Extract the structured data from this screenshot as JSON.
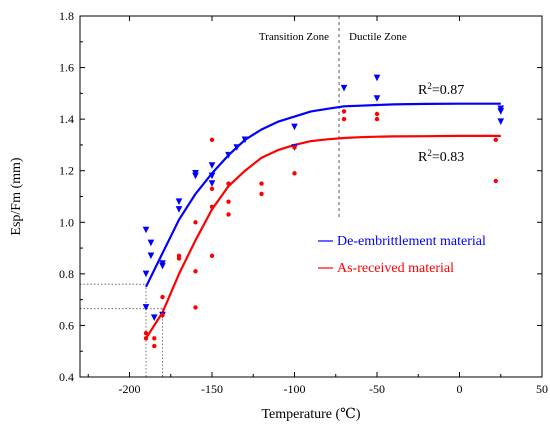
{
  "chart_data": {
    "type": "scatter",
    "title": "",
    "xlabel": "Temperature (℃)",
    "ylabel": "Esp/Fm (mm)",
    "xlim": [
      -230,
      50
    ],
    "ylim": [
      0.4,
      1.8
    ],
    "xticks": [
      "-200",
      "-150",
      "-100",
      "-50",
      "0",
      "50"
    ],
    "xtick_values": [
      -200,
      -150,
      -100,
      -50,
      0,
      50
    ],
    "yticks": [
      "0.4",
      "0.6",
      "0.8",
      "1.0",
      "1.2",
      "1.4",
      "1.6",
      "1.8"
    ],
    "ytick_values": [
      0.4,
      0.6,
      0.8,
      1.0,
      1.2,
      1.4,
      1.6,
      1.8
    ],
    "legend_position": "center-right",
    "colors": {
      "blue": "#0000ff",
      "red": "#ff0000",
      "guide": "#555555"
    },
    "zones": {
      "boundary_x": -73,
      "left_label": "Transition Zone",
      "right_label": "Ductile Zone"
    },
    "reference_lines": [
      {
        "x": -190,
        "y": 0.76
      },
      {
        "x": -180,
        "y": 0.665
      }
    ],
    "series": [
      {
        "name": "De-embrittlement material",
        "color": "#0000ff",
        "marker": "triangle-down",
        "r2_label": "R",
        "r2_value": "=0.87",
        "x": [
          -190,
          -190,
          -190,
          -187,
          -187,
          -185,
          -180,
          -180,
          -180,
          -170,
          -170,
          -160,
          -160,
          -150,
          -150,
          -150,
          -140,
          -135,
          -130,
          -100,
          -100,
          -70,
          -50,
          -50,
          25,
          25,
          25
        ],
        "y": [
          0.97,
          0.8,
          0.67,
          0.92,
          0.87,
          0.63,
          0.84,
          0.83,
          0.64,
          1.08,
          1.05,
          1.19,
          1.18,
          1.22,
          1.18,
          1.15,
          1.26,
          1.29,
          1.32,
          1.37,
          1.29,
          1.52,
          1.56,
          1.48,
          1.44,
          1.43,
          1.39
        ],
        "fit": {
          "x": [
            -190,
            -180,
            -170,
            -160,
            -150,
            -140,
            -130,
            -120,
            -110,
            -100,
            -90,
            -80,
            -70,
            -60,
            -50,
            -40,
            -20,
            0,
            25
          ],
          "y": [
            0.75,
            0.88,
            1.01,
            1.11,
            1.19,
            1.26,
            1.32,
            1.36,
            1.39,
            1.41,
            1.43,
            1.44,
            1.45,
            1.452,
            1.455,
            1.457,
            1.459,
            1.46,
            1.46
          ]
        }
      },
      {
        "name": "As-received material",
        "color": "#ff0000",
        "marker": "circle",
        "r2_label": "R",
        "r2_value": "=0.83",
        "x": [
          -190,
          -190,
          -185,
          -185,
          -180,
          -180,
          -170,
          -170,
          -160,
          -160,
          -160,
          -150,
          -150,
          -150,
          -150,
          -140,
          -140,
          -140,
          -120,
          -120,
          -100,
          -100,
          -70,
          -70,
          -50,
          -50,
          22,
          22
        ],
        "y": [
          0.57,
          0.55,
          0.55,
          0.52,
          0.71,
          0.64,
          0.87,
          0.86,
          1.0,
          0.81,
          0.67,
          1.32,
          1.13,
          1.06,
          0.87,
          1.15,
          1.08,
          1.03,
          1.15,
          1.11,
          1.29,
          1.19,
          1.43,
          1.4,
          1.42,
          1.4,
          1.32,
          1.16
        ],
        "fit": {
          "x": [
            -190,
            -180,
            -170,
            -160,
            -150,
            -140,
            -130,
            -120,
            -110,
            -100,
            -90,
            -80,
            -70,
            -60,
            -50,
            -40,
            -20,
            0,
            25
          ],
          "y": [
            0.55,
            0.65,
            0.8,
            0.93,
            1.05,
            1.14,
            1.2,
            1.25,
            1.28,
            1.3,
            1.315,
            1.322,
            1.327,
            1.33,
            1.332,
            1.333,
            1.334,
            1.335,
            1.335
          ]
        }
      }
    ]
  }
}
